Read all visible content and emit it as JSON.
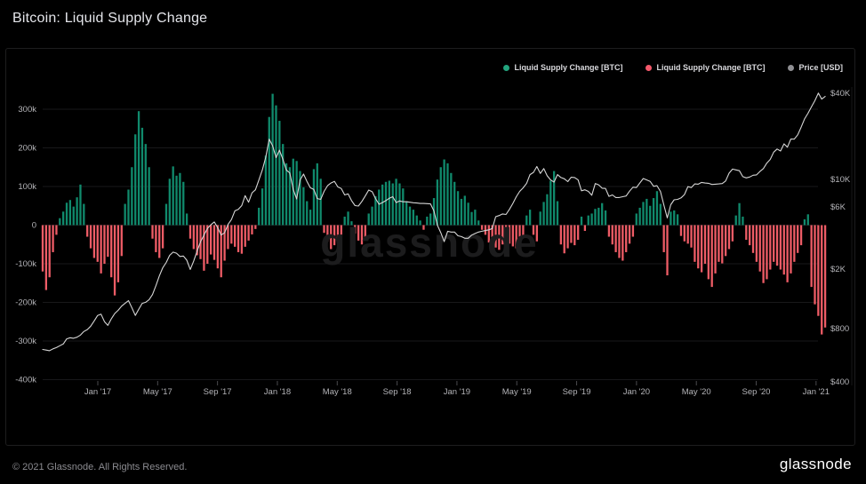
{
  "header": {
    "title": "Bitcoin: Liquid Supply Change"
  },
  "legend": {
    "items": [
      {
        "label": "Liquid Supply Change [BTC]",
        "color": "#23a47e"
      },
      {
        "label": "Liquid Supply Change [BTC]",
        "color": "#f4596b"
      },
      {
        "label": "Price [USD]",
        "color": "#8f8f93"
      }
    ]
  },
  "watermark": "glassnode",
  "footer": {
    "copyright": "© 2021 Glassnode. All Rights Reserved.",
    "brand": "glassnode"
  },
  "chart_data": {
    "type": "bar",
    "title": "Bitcoin: Liquid Supply Change",
    "x_axis": {
      "labels": [
        "Jan '17",
        "May '17",
        "Sep '17",
        "Jan '18",
        "May '18",
        "Sep '18",
        "Jan '19",
        "May '19",
        "Sep '19",
        "Jan '20",
        "May '20",
        "Sep '20",
        "Jan '21"
      ],
      "range": "Sep 2016 - Feb 2021",
      "resolution": "weekly"
    },
    "y_axis_left": {
      "label": "Liquid Supply Change [BTC]",
      "unit": "kBTC",
      "ticks": [
        "300k",
        "200k",
        "100k",
        "0",
        "-100k",
        "-200k",
        "-300k",
        "-400k"
      ],
      "tick_values": [
        300,
        200,
        100,
        0,
        -100,
        -200,
        -300,
        -400
      ],
      "ylim": [
        -400,
        350
      ]
    },
    "y_axis_right": {
      "label": "Price [USD]",
      "scale": "log",
      "ticks": [
        "$40K",
        "$10K",
        "$6K",
        "$2K",
        "$800",
        "$400"
      ],
      "tick_values": [
        40000,
        10000,
        6000,
        2000,
        800,
        400
      ]
    },
    "grid": "horizontal-faint",
    "legend_position": "top-right",
    "series": [
      {
        "name": "Liquid Supply Change [BTC]",
        "type": "bar",
        "unit": "kBTC",
        "color_positive": "#108a6c",
        "color_negative": "#ee5c66",
        "values": [
          -120,
          -168,
          -135,
          -70,
          -25,
          18,
          35,
          58,
          65,
          48,
          72,
          105,
          55,
          -30,
          -60,
          -85,
          -95,
          -125,
          -100,
          -82,
          -135,
          -182,
          -148,
          -80,
          55,
          92,
          150,
          235,
          295,
          252,
          210,
          150,
          -35,
          -70,
          -85,
          -60,
          55,
          120,
          152,
          128,
          135,
          112,
          30,
          -35,
          -62,
          -78,
          -88,
          -118,
          -100,
          -76,
          -90,
          -112,
          -135,
          -92,
          -62,
          -48,
          -56,
          -70,
          -74,
          -56,
          -40,
          -24,
          -10,
          45,
          95,
          180,
          280,
          340,
          310,
          270,
          210,
          160,
          150,
          172,
          166,
          140,
          98,
          62,
          40,
          145,
          160,
          120,
          -20,
          -42,
          -62,
          -52,
          -45,
          -25,
          22,
          35,
          10,
          -22,
          -40,
          -50,
          -32,
          30,
          48,
          75,
          92,
          105,
          112,
          115,
          108,
          120,
          108,
          95,
          62,
          48,
          40,
          25,
          12,
          -12,
          22,
          30,
          70,
          118,
          150,
          170,
          160,
          135,
          112,
          88,
          68,
          76,
          58,
          34,
          40,
          12,
          -12,
          -25,
          -45,
          -55,
          -58,
          -64,
          -50,
          -42,
          -48,
          -55,
          -60,
          -48,
          -30,
          25,
          40,
          -25,
          -42,
          35,
          60,
          80,
          115,
          140,
          62,
          -50,
          -73,
          -60,
          -46,
          -52,
          -38,
          22,
          -15,
          25,
          30,
          42,
          45,
          57,
          38,
          -30,
          -50,
          -70,
          -85,
          -92,
          -70,
          -48,
          -30,
          30,
          45,
          60,
          68,
          50,
          70,
          88,
          55,
          -70,
          -130,
          35,
          38,
          28,
          -28,
          -42,
          -48,
          -58,
          -95,
          -112,
          -122,
          -100,
          -140,
          -160,
          -125,
          -95,
          -99,
          -80,
          -62,
          -42,
          25,
          57,
          22,
          -38,
          -52,
          -72,
          -95,
          -120,
          -150,
          -140,
          -115,
          -95,
          -105,
          -115,
          -128,
          -148,
          -125,
          -95,
          -72,
          -52,
          15,
          28,
          -160,
          -205,
          -235,
          -283,
          -265
        ]
      },
      {
        "name": "Price [USD]",
        "type": "line",
        "unit": "USD",
        "color": "#d6d6d6",
        "values": [
          610,
          605,
          600,
          615,
          625,
          640,
          655,
          700,
          710,
          705,
          715,
          735,
          770,
          790,
          830,
          900,
          980,
          1000,
          890,
          840,
          930,
          1010,
          1060,
          1130,
          1180,
          1230,
          1100,
          980,
          1080,
          1180,
          1200,
          1250,
          1350,
          1550,
          1800,
          2050,
          2250,
          2550,
          2700,
          2650,
          2500,
          2520,
          2340,
          1990,
          2300,
          2750,
          3250,
          3650,
          4100,
          4380,
          4600,
          4150,
          3650,
          3800,
          4400,
          4800,
          5600,
          5750,
          6150,
          7400,
          6550,
          7800,
          8250,
          9900,
          11600,
          14300,
          19100,
          17200,
          14200,
          16000,
          13800,
          11600,
          11100,
          8300,
          6950,
          9900,
          10900,
          9650,
          8550,
          8300,
          7000,
          6900,
          8000,
          8900,
          9350,
          9650,
          8700,
          8450,
          7500,
          7650,
          6750,
          6150,
          6100,
          6650,
          7350,
          8200,
          7950,
          7000,
          6300,
          6500,
          6750,
          7050,
          7250,
          6500,
          6700,
          6600,
          6600,
          6550,
          6480,
          6450,
          6400,
          6400,
          6380,
          6350,
          5600,
          4350,
          3800,
          3250,
          3900,
          3850,
          3850,
          3600,
          3550,
          3450,
          3450,
          3650,
          3750,
          3850,
          3900,
          3950,
          4000,
          4100,
          5050,
          5150,
          5300,
          5250,
          5750,
          6400,
          7250,
          8000,
          8550,
          9300,
          10800,
          11200,
          12300,
          11000,
          11900,
          10600,
          9900,
          9500,
          10800,
          10300,
          10100,
          9600,
          10350,
          10300,
          9900,
          8100,
          8250,
          8000,
          7450,
          9250,
          9050,
          8500,
          8450,
          7300,
          7500,
          7150,
          7150,
          7250,
          7350,
          8050,
          8650,
          8600,
          9350,
          10150,
          9900,
          9650,
          8800,
          8900,
          8000,
          6200,
          4950,
          6250,
          6850,
          6900,
          7100,
          7550,
          8750,
          8600,
          9200,
          9150,
          9450,
          9350,
          9300,
          9100,
          9150,
          9200,
          9250,
          9700,
          11050,
          11800,
          11650,
          11500,
          10450,
          10250,
          10400,
          10700,
          10750,
          11350,
          11900,
          13000,
          13800,
          15500,
          16300,
          15800,
          17700,
          16800,
          19150,
          19100,
          20500,
          23200,
          26450,
          29000,
          32100,
          35500,
          40100,
          36400,
          38000
        ]
      }
    ]
  }
}
